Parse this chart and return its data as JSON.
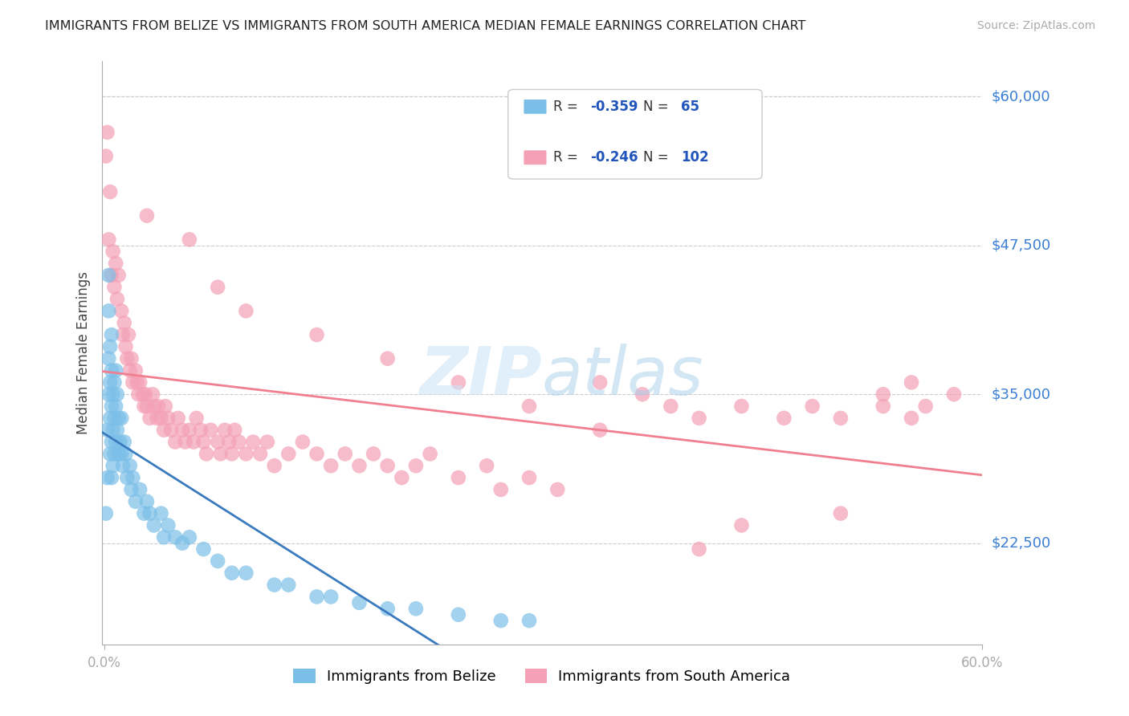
{
  "title": "IMMIGRANTS FROM BELIZE VS IMMIGRANTS FROM SOUTH AMERICA MEDIAN FEMALE EARNINGS CORRELATION CHART",
  "source": "Source: ZipAtlas.com",
  "ylabel": "Median Female Earnings",
  "ytick_labels": [
    "$22,500",
    "$35,000",
    "$47,500",
    "$60,000"
  ],
  "ytick_values": [
    22500,
    35000,
    47500,
    60000
  ],
  "y_min": 14000,
  "y_max": 63000,
  "x_min": -0.002,
  "x_max": 0.62,
  "belize_scatter_color": "#7bbfe8",
  "south_america_scatter_color": "#f4a0b5",
  "belize_line_color": "#3a7abf",
  "south_america_line_color": "#f08090",
  "belize_R": "-0.359",
  "belize_N": "65",
  "south_america_R": "-0.246",
  "south_america_N": "102",
  "belize_label": "Immigrants from Belize",
  "south_america_label": "Immigrants from South America",
  "ytick_color": "#3a7fd4",
  "legend_text_color": "#2255bb",
  "legend_RN_color": "#2255bb",
  "belize_points_x": [
    0.001,
    0.002,
    0.002,
    0.003,
    0.003,
    0.003,
    0.003,
    0.004,
    0.004,
    0.004,
    0.004,
    0.005,
    0.005,
    0.005,
    0.005,
    0.005,
    0.006,
    0.006,
    0.006,
    0.007,
    0.007,
    0.007,
    0.008,
    0.008,
    0.008,
    0.009,
    0.009,
    0.01,
    0.01,
    0.011,
    0.012,
    0.012,
    0.013,
    0.014,
    0.015,
    0.016,
    0.018,
    0.019,
    0.02,
    0.022,
    0.025,
    0.028,
    0.03,
    0.032,
    0.035,
    0.04,
    0.042,
    0.045,
    0.05,
    0.055,
    0.06,
    0.07,
    0.08,
    0.09,
    0.1,
    0.12,
    0.13,
    0.15,
    0.16,
    0.18,
    0.2,
    0.22,
    0.25,
    0.28,
    0.3
  ],
  "belize_points_y": [
    25000,
    28000,
    32000,
    35000,
    38000,
    42000,
    45000,
    30000,
    33000,
    36000,
    39000,
    28000,
    31000,
    34000,
    37000,
    40000,
    29000,
    32000,
    35000,
    30000,
    33000,
    36000,
    31000,
    34000,
    37000,
    32000,
    35000,
    30000,
    33000,
    31000,
    30000,
    33000,
    29000,
    31000,
    30000,
    28000,
    29000,
    27000,
    28000,
    26000,
    27000,
    25000,
    26000,
    25000,
    24000,
    25000,
    23000,
    24000,
    23000,
    22500,
    23000,
    22000,
    21000,
    20000,
    20000,
    19000,
    19000,
    18000,
    18000,
    17500,
    17000,
    17000,
    16500,
    16000,
    16000
  ],
  "sa_points_x": [
    0.001,
    0.002,
    0.003,
    0.004,
    0.005,
    0.006,
    0.007,
    0.008,
    0.009,
    0.01,
    0.012,
    0.013,
    0.014,
    0.015,
    0.016,
    0.017,
    0.018,
    0.019,
    0.02,
    0.022,
    0.023,
    0.024,
    0.025,
    0.027,
    0.028,
    0.029,
    0.03,
    0.032,
    0.034,
    0.035,
    0.037,
    0.038,
    0.04,
    0.042,
    0.043,
    0.045,
    0.047,
    0.05,
    0.052,
    0.055,
    0.057,
    0.06,
    0.063,
    0.065,
    0.068,
    0.07,
    0.072,
    0.075,
    0.08,
    0.082,
    0.085,
    0.088,
    0.09,
    0.092,
    0.095,
    0.1,
    0.105,
    0.11,
    0.115,
    0.12,
    0.13,
    0.14,
    0.15,
    0.16,
    0.17,
    0.18,
    0.19,
    0.2,
    0.21,
    0.22,
    0.23,
    0.25,
    0.27,
    0.28,
    0.3,
    0.32,
    0.35,
    0.38,
    0.4,
    0.42,
    0.45,
    0.48,
    0.5,
    0.52,
    0.55,
    0.57,
    0.42,
    0.45,
    0.52,
    0.55,
    0.57,
    0.58,
    0.6,
    0.03,
    0.06,
    0.08,
    0.1,
    0.15,
    0.2,
    0.25,
    0.3,
    0.35
  ],
  "sa_points_y": [
    55000,
    57000,
    48000,
    52000,
    45000,
    47000,
    44000,
    46000,
    43000,
    45000,
    42000,
    40000,
    41000,
    39000,
    38000,
    40000,
    37000,
    38000,
    36000,
    37000,
    36000,
    35000,
    36000,
    35000,
    34000,
    35000,
    34000,
    33000,
    35000,
    34000,
    33000,
    34000,
    33000,
    32000,
    34000,
    33000,
    32000,
    31000,
    33000,
    32000,
    31000,
    32000,
    31000,
    33000,
    32000,
    31000,
    30000,
    32000,
    31000,
    30000,
    32000,
    31000,
    30000,
    32000,
    31000,
    30000,
    31000,
    30000,
    31000,
    29000,
    30000,
    31000,
    30000,
    29000,
    30000,
    29000,
    30000,
    29000,
    28000,
    29000,
    30000,
    28000,
    29000,
    27000,
    28000,
    27000,
    36000,
    35000,
    34000,
    33000,
    34000,
    33000,
    34000,
    33000,
    34000,
    33000,
    22000,
    24000,
    25000,
    35000,
    36000,
    34000,
    35000,
    50000,
    48000,
    44000,
    42000,
    40000,
    38000,
    36000,
    34000,
    32000
  ]
}
